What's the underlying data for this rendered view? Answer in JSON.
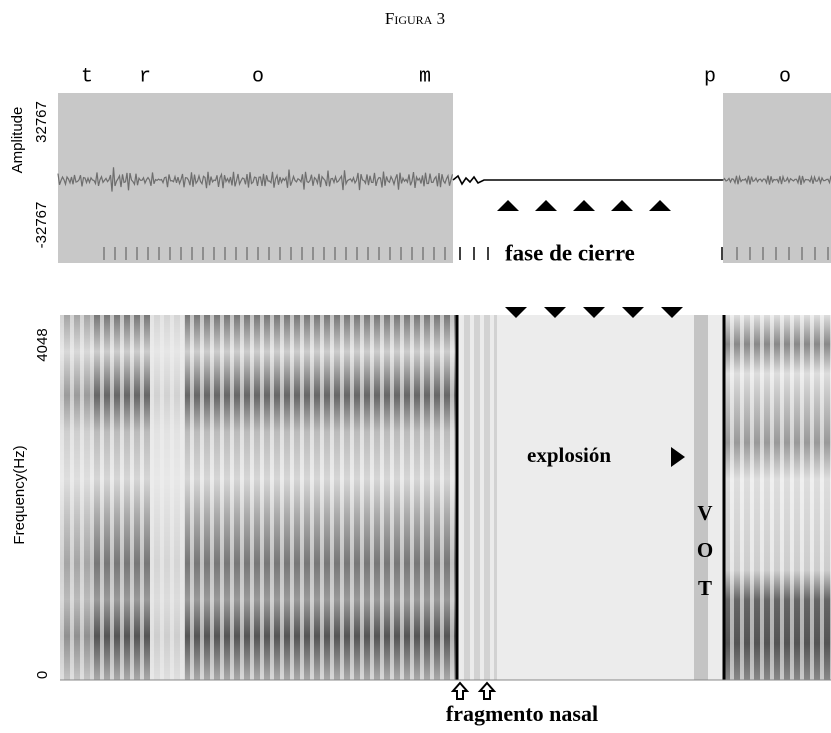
{
  "figure": {
    "title": "Figura 3",
    "segments": [
      "t",
      "r",
      "o",
      "m",
      "p",
      "o"
    ],
    "waveform": {
      "axis_label": "Amplitude",
      "yticks": [
        32767,
        -32767
      ]
    },
    "spectrogram": {
      "axis_label": "Frequency(Hz)",
      "yticks": [
        4048,
        0
      ]
    },
    "annotations": {
      "closure": "fase de cierre",
      "burst": "explosión",
      "vot": [
        "V",
        "O",
        "T"
      ],
      "nasal": "fragmento nasal"
    }
  }
}
